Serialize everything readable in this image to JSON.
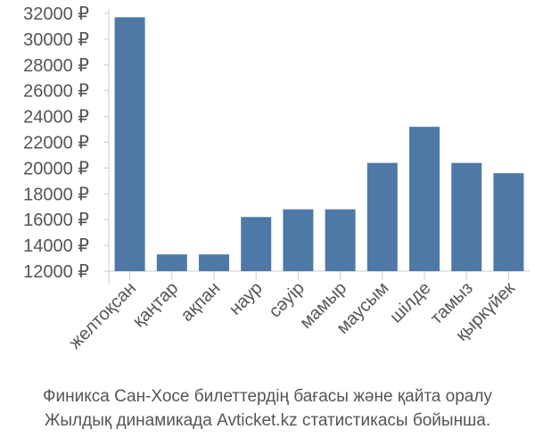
{
  "chart_data": {
    "type": "bar",
    "categories": [
      "желтоқсан",
      "қаңтар",
      "ақпан",
      "наур",
      "сәуір",
      "мамыр",
      "маусым",
      "шілде",
      "тамыз",
      "қыркүйек"
    ],
    "values": [
      31700,
      13300,
      13300,
      16200,
      16800,
      16800,
      20400,
      23200,
      20400,
      19600
    ],
    "ylim": [
      12000,
      32000
    ],
    "yticks": [
      12000,
      14000,
      16000,
      18000,
      20000,
      22000,
      24000,
      26000,
      28000,
      30000,
      32000
    ],
    "ytick_labels": [
      "12000 ₽",
      "14000 ₽",
      "16000 ₽",
      "18000 ₽",
      "20000 ₽",
      "22000 ₽",
      "24000 ₽",
      "26000 ₽",
      "28000 ₽",
      "30000 ₽",
      "32000 ₽"
    ],
    "bar_color": "#4e79a7",
    "grid": false
  },
  "caption": {
    "line1": "Финикса Сан-Хосе билеттердің бағасы және қайта оралу",
    "line2": "Жылдық динамикада Avticket.kz статистикасы бойынша."
  }
}
